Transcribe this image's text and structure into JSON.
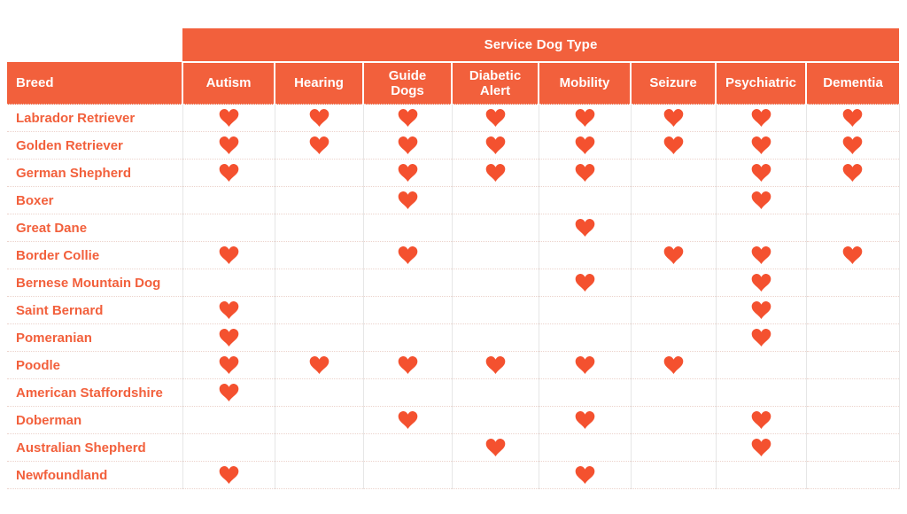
{
  "colors": {
    "accent": "#f2603c",
    "heart": "#f4512f",
    "header_text": "#ffffff"
  },
  "icons": {
    "cell_marker": "heart-icon"
  },
  "chart_data": {
    "type": "table",
    "title": "Service Dog Type",
    "row_label": "Breed",
    "marker": "heart",
    "columns": [
      "Autism",
      "Hearing",
      "Guide Dogs",
      "Diabetic Alert",
      "Mobility",
      "Seizure",
      "Psychiatric",
      "Dementia"
    ],
    "rows": [
      {
        "breed": "Labrador Retriever",
        "values": [
          1,
          1,
          1,
          1,
          1,
          1,
          1,
          1
        ]
      },
      {
        "breed": "Golden Retriever",
        "values": [
          1,
          1,
          1,
          1,
          1,
          1,
          1,
          1
        ]
      },
      {
        "breed": "German Shepherd",
        "values": [
          1,
          0,
          1,
          1,
          1,
          0,
          1,
          1
        ]
      },
      {
        "breed": "Boxer",
        "values": [
          0,
          0,
          1,
          0,
          0,
          0,
          1,
          0
        ]
      },
      {
        "breed": "Great Dane",
        "values": [
          0,
          0,
          0,
          0,
          1,
          0,
          0,
          0
        ]
      },
      {
        "breed": "Border Collie",
        "values": [
          1,
          0,
          1,
          0,
          0,
          1,
          1,
          1
        ]
      },
      {
        "breed": "Bernese Mountain Dog",
        "values": [
          0,
          0,
          0,
          0,
          1,
          0,
          1,
          0
        ]
      },
      {
        "breed": "Saint Bernard",
        "values": [
          1,
          0,
          0,
          0,
          0,
          0,
          1,
          0
        ]
      },
      {
        "breed": "Pomeranian",
        "values": [
          1,
          0,
          0,
          0,
          0,
          0,
          1,
          0
        ]
      },
      {
        "breed": "Poodle",
        "values": [
          1,
          1,
          1,
          1,
          1,
          1,
          0,
          0
        ]
      },
      {
        "breed": "American Staffordshire",
        "values": [
          1,
          0,
          0,
          0,
          0,
          0,
          0,
          0
        ]
      },
      {
        "breed": "Doberman",
        "values": [
          0,
          0,
          1,
          0,
          1,
          0,
          1,
          0
        ]
      },
      {
        "breed": "Australian Shepherd",
        "values": [
          0,
          0,
          0,
          1,
          0,
          0,
          1,
          0
        ]
      },
      {
        "breed": "Newfoundland",
        "values": [
          1,
          0,
          0,
          0,
          1,
          0,
          0,
          0
        ]
      }
    ]
  }
}
